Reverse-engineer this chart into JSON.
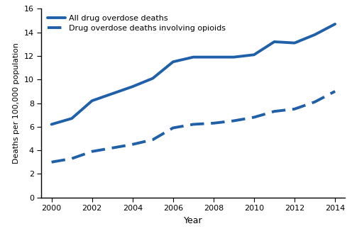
{
  "years": [
    2000,
    2001,
    2002,
    2003,
    2004,
    2005,
    2006,
    2007,
    2008,
    2009,
    2010,
    2011,
    2012,
    2013,
    2014
  ],
  "all_drug_overdose": [
    6.2,
    6.7,
    8.2,
    8.8,
    9.4,
    10.1,
    11.5,
    11.9,
    11.9,
    11.9,
    12.1,
    13.2,
    13.1,
    13.8,
    14.7
  ],
  "opioid_overdose": [
    3.0,
    3.3,
    3.9,
    4.2,
    4.5,
    4.9,
    5.9,
    6.2,
    6.3,
    6.5,
    6.8,
    7.3,
    7.5,
    8.1,
    9.0
  ],
  "line1_label": "All drug overdose deaths",
  "line2_label": "Drug overdose deaths involving opioids",
  "xlabel": "Year",
  "ylabel": "Deaths per 100,000 population",
  "ylim": [
    0,
    16
  ],
  "xlim": [
    1999.5,
    2014.5
  ],
  "yticks": [
    0,
    2,
    4,
    6,
    8,
    10,
    12,
    14,
    16
  ],
  "xticks": [
    2000,
    2002,
    2004,
    2006,
    2008,
    2010,
    2012,
    2014
  ],
  "line_color": "#2060a8",
  "linewidth": 2.8,
  "background_color": "#ffffff",
  "legend_loc": "upper left",
  "legend_fontsize": 8.0,
  "xlabel_fontsize": 9,
  "ylabel_fontsize": 7.8,
  "tick_labelsize": 8
}
